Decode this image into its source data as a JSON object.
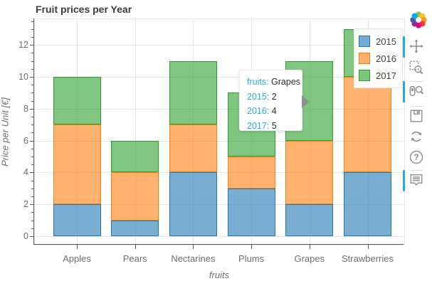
{
  "title": {
    "text": "Fruit prices per Year",
    "color": "#3c3c3c"
  },
  "chart_data": {
    "type": "bar",
    "stacked": true,
    "title": "Fruit prices per Year",
    "xlabel": "fruits",
    "ylabel": "Price per Unit [€]",
    "categories": [
      "Apples",
      "Pears",
      "Nectarines",
      "Plums",
      "Grapes",
      "Strawberries"
    ],
    "series": [
      {
        "name": "2015",
        "color": "#1f77b4",
        "fill": "rgba(31,119,180,0.6)",
        "values": [
          2,
          1,
          4,
          3,
          2,
          4
        ]
      },
      {
        "name": "2016",
        "color": "#ff7f0e",
        "fill": "rgba(255,127,14,0.6)",
        "values": [
          5,
          3,
          3,
          2,
          4,
          6
        ]
      },
      {
        "name": "2017",
        "color": "#2ca02c",
        "fill": "rgba(44,160,44,0.6)",
        "values": [
          3,
          2,
          4,
          4,
          5,
          3
        ]
      }
    ],
    "stack_totals": [
      10,
      6,
      11,
      9,
      11,
      13
    ],
    "y_ticks": [
      0,
      2,
      4,
      6,
      8,
      10,
      12
    ],
    "ylim": [
      0,
      13.6
    ],
    "grid": true,
    "legend_position": "top_right"
  },
  "legend": {
    "items": [
      "2015",
      "2016",
      "2017"
    ]
  },
  "tooltip": {
    "rows": [
      {
        "label": "fruits:",
        "value": "Grapes"
      },
      {
        "label": "2015:",
        "value": "2"
      },
      {
        "label": "2016:",
        "value": "4"
      },
      {
        "label": "2017:",
        "value": "5"
      }
    ],
    "label_color": "#26aae1",
    "value_color": "#2b2b2b"
  },
  "toolbar": {
    "active_color": "#26aae1",
    "tools": [
      {
        "name": "pan",
        "icon": "move-icon",
        "active": true,
        "separator_after": false
      },
      {
        "name": "box-zoom",
        "icon": "box-zoom-icon",
        "active": false,
        "separator_after": true
      },
      {
        "name": "wheel-zoom",
        "icon": "wheel-zoom-icon",
        "active": true,
        "separator_after": true
      },
      {
        "name": "save",
        "icon": "save-icon",
        "active": false,
        "separator_after": false
      },
      {
        "name": "reset",
        "icon": "reset-icon",
        "active": false,
        "separator_after": false
      },
      {
        "name": "help",
        "icon": "help-icon",
        "active": false,
        "separator_after": true
      },
      {
        "name": "hover",
        "icon": "hover-icon",
        "active": true,
        "separator_after": false
      }
    ]
  },
  "colors": {
    "grid": "#e5e5e5",
    "axis": "#5b5b5b",
    "tick_label": "#6e6e6e",
    "outline": "#e5e5e5"
  }
}
